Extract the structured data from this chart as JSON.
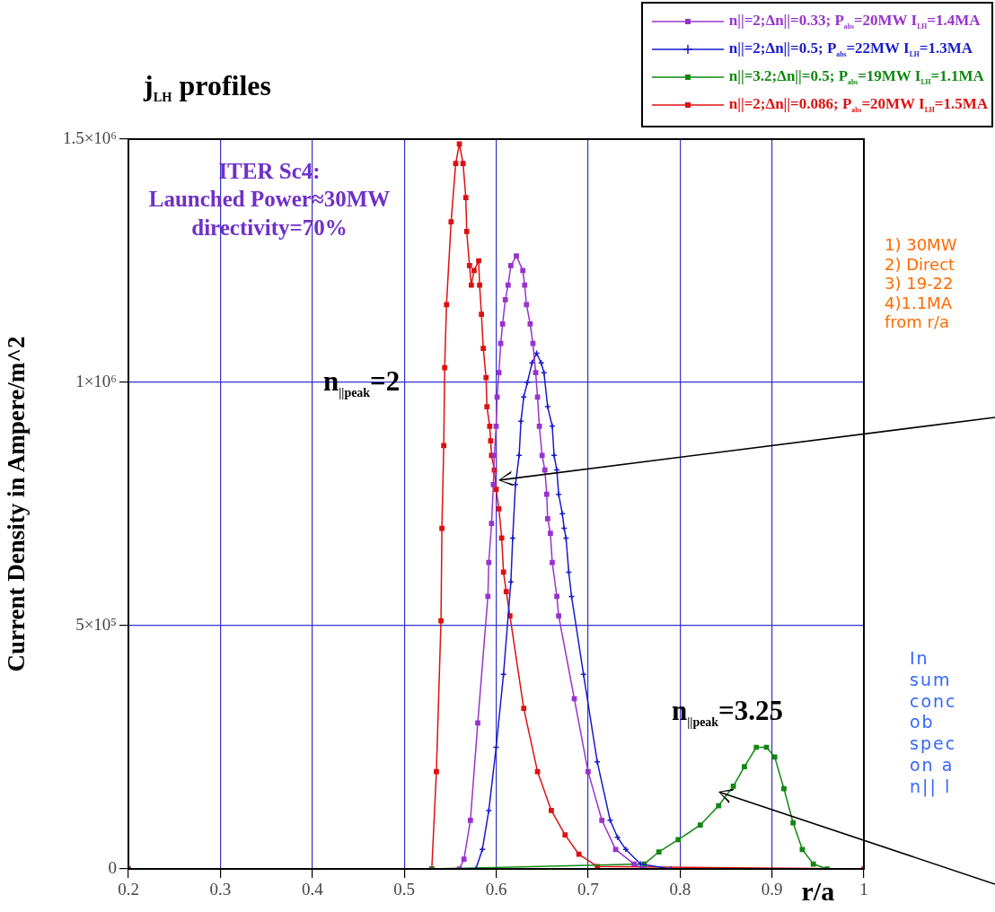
{
  "chart_data": {
    "type": "line",
    "title": "j$_{LH}$ profiles",
    "xlabel": "r/a",
    "ylabel": "Current Density in Ampere/m^2",
    "xlim": [
      0.2,
      1
    ],
    "xticks": [
      0.2,
      0.3,
      0.4,
      0.5,
      0.6,
      0.7,
      0.8,
      0.9,
      1
    ],
    "ylim": [
      0,
      1500000
    ],
    "yticks": [
      {
        "value": 0,
        "label": "0"
      },
      {
        "value": 500000,
        "label": "5×10⁵"
      },
      {
        "value": 1000000,
        "label": "1×10⁶"
      },
      {
        "value": 1500000,
        "label": "1.5×10⁶"
      }
    ],
    "grid": true,
    "legend": "top right",
    "line_style": "solid",
    "series": [
      {
        "name": "n||=2;Δn||=0.33; P$_{abs}$=20MW I$_{LH}$=1.4MA",
        "color": "#9933cc",
        "marker": "square",
        "x": [
          0.2,
          0.56,
          0.565,
          0.572,
          0.58,
          0.591,
          0.592,
          0.595,
          0.597,
          0.598,
          0.6,
          0.601,
          0.603,
          0.605,
          0.607,
          0.61,
          0.613,
          0.616,
          0.622,
          0.629,
          0.631,
          0.633,
          0.637,
          0.64,
          0.643,
          0.645,
          0.647,
          0.65,
          0.653,
          0.655,
          0.656,
          0.659,
          0.661,
          0.666,
          0.668,
          0.685,
          0.7,
          0.715,
          0.73,
          0.75,
          0.76
        ],
        "values": [
          0,
          0,
          20000,
          100000,
          300000,
          560000,
          630000,
          710000,
          790000,
          850000,
          910000,
          970000,
          1020000,
          1080000,
          1120000,
          1170000,
          1200000,
          1240000,
          1260000,
          1230000,
          1200000,
          1160000,
          1120000,
          1080000,
          1020000,
          970000,
          910000,
          850000,
          820000,
          770000,
          720000,
          690000,
          630000,
          560000,
          520000,
          350000,
          200000,
          100000,
          40000,
          10000,
          0
        ]
      },
      {
        "name": "n||=2;Δn||=0.5; P$_{abs}$=22MW I$_{LH}$=1.3MA",
        "color": "#1a1acc",
        "marker": "cross",
        "x": [
          0.2,
          0.578,
          0.585,
          0.592,
          0.6,
          0.608,
          0.616,
          0.618,
          0.621,
          0.625,
          0.627,
          0.63,
          0.634,
          0.639,
          0.644,
          0.649,
          0.652,
          0.656,
          0.661,
          0.663,
          0.666,
          0.668,
          0.672,
          0.674,
          0.676,
          0.679,
          0.682,
          0.695,
          0.71,
          0.724,
          0.732,
          0.741,
          0.757,
          0.79
        ],
        "values": [
          0,
          0,
          40000,
          120000,
          250000,
          400000,
          590000,
          680000,
          790000,
          850000,
          920000,
          970000,
          1000000,
          1040000,
          1060000,
          1040000,
          1020000,
          950000,
          910000,
          850000,
          820000,
          770000,
          730000,
          700000,
          680000,
          610000,
          560000,
          400000,
          220000,
          100000,
          65000,
          40000,
          10000,
          0
        ]
      },
      {
        "name": "n||=3.2;Δn||=0.5; P$_{abs}$=19MW I$_{LH}$=1.1MA",
        "color": "#118811",
        "marker": "square",
        "x": [
          0.53,
          0.761,
          0.777,
          0.798,
          0.822,
          0.842,
          0.858,
          0.87,
          0.883,
          0.894,
          0.903,
          0.913,
          0.923,
          0.933,
          0.945,
          0.96
        ],
        "values": [
          0,
          10000,
          35000,
          60000,
          90000,
          130000,
          170000,
          210000,
          250000,
          250000,
          230000,
          165000,
          95000,
          40000,
          10000,
          0
        ]
      },
      {
        "name": "n||=2;Δn||=0.086; P$_{abs}$=20MW I$_{LH}$=1.5MA",
        "color": "#dd1111",
        "marker": "square",
        "x": [
          0.2,
          0.53,
          0.535,
          0.54,
          0.541,
          0.543,
          0.544,
          0.546,
          0.551,
          0.556,
          0.56,
          0.564,
          0.567,
          0.568,
          0.571,
          0.573,
          0.576,
          0.581,
          0.582,
          0.584,
          0.586,
          0.589,
          0.59,
          0.593,
          0.594,
          0.595,
          0.598,
          0.6,
          0.603,
          0.606,
          0.608,
          0.611,
          0.615,
          0.63,
          0.645,
          0.66,
          0.675,
          0.69,
          0.71,
          1.0
        ],
        "values": [
          0,
          0,
          200000,
          510000,
          700000,
          870000,
          1030000,
          1160000,
          1330000,
          1450000,
          1490000,
          1450000,
          1380000,
          1310000,
          1240000,
          1200000,
          1230000,
          1250000,
          1200000,
          1140000,
          1070000,
          1010000,
          950000,
          910000,
          880000,
          850000,
          820000,
          780000,
          740000,
          680000,
          610000,
          570000,
          520000,
          330000,
          200000,
          120000,
          70000,
          30000,
          5000,
          0
        ]
      }
    ],
    "annotations": [
      "ITER Sc4:\nLaunched Power≈30MW\ndirectivity=70%",
      "n$_{||peak}$=2",
      "n$_{||peak}$=3.25",
      "1) 30MW\n2) Direct\n3) 19-22\n4)1.1MA\nfrom r/a",
      "In\nsum\nconc\nob\nspec\non a\nn|| l"
    ]
  }
}
